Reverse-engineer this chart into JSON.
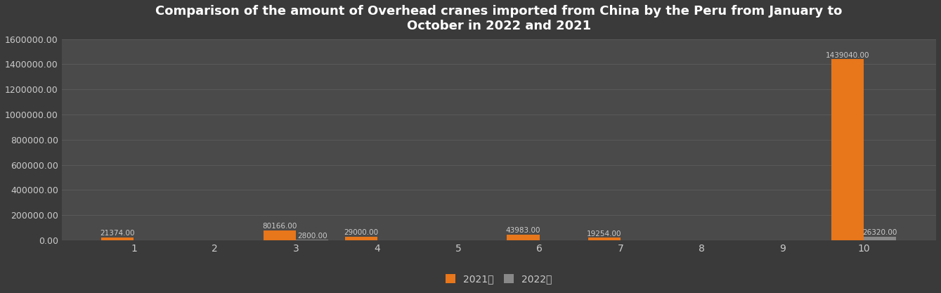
{
  "title": "Comparison of the amount of Overhead cranes imported from China by the Peru from January to\nOctober in 2022 and 2021",
  "months": [
    1,
    2,
    3,
    4,
    5,
    6,
    7,
    8,
    9,
    10
  ],
  "values_2021": [
    21374.0,
    0,
    80166.0,
    29000.0,
    0,
    43983.0,
    19254.0,
    0,
    0,
    1439040.0
  ],
  "values_2022": [
    0,
    0,
    2800.0,
    0,
    0,
    0,
    0,
    0,
    0,
    26320.0
  ],
  "color_2021": "#E8761A",
  "color_2022": "#888888",
  "bg_color": "#3A3A3A",
  "plot_bg_color": "#4A4A4A",
  "text_color": "#CCCCCC",
  "grid_color": "#5A5A5A",
  "ylim": [
    0,
    1600000
  ],
  "yticks": [
    0,
    200000,
    400000,
    600000,
    800000,
    1000000,
    1200000,
    1400000,
    1600000
  ],
  "legend_2021": "2021年",
  "legend_2022": "2022年",
  "bar_width": 0.4,
  "label_fontsize": 7.5,
  "title_fontsize": 13
}
